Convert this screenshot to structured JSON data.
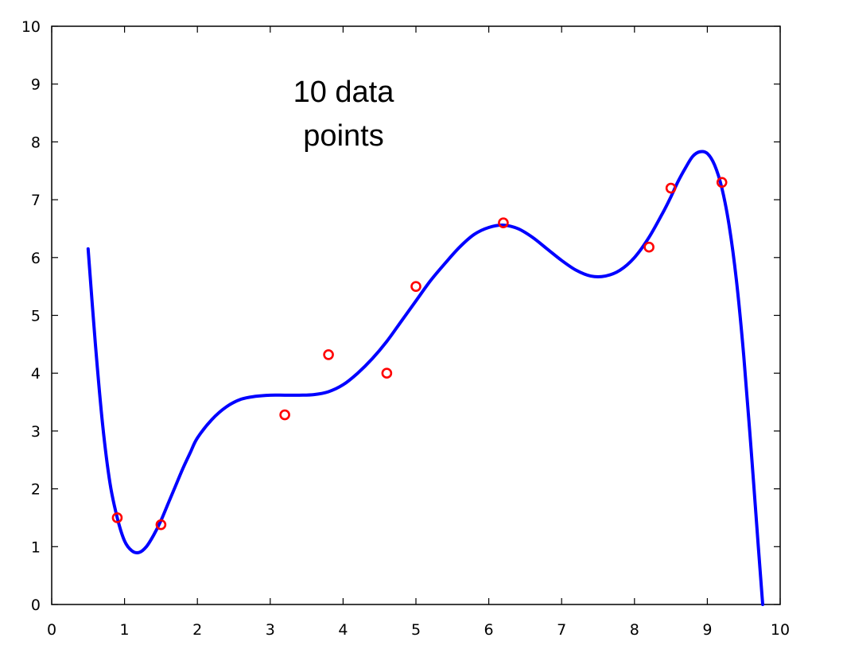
{
  "chart_data": {
    "type": "scatter",
    "title": "",
    "xlabel": "",
    "ylabel": "",
    "xlim": [
      0,
      10
    ],
    "ylim": [
      0,
      10
    ],
    "grid": false,
    "x_ticks": [
      "0",
      "1",
      "2",
      "3",
      "4",
      "5",
      "6",
      "7",
      "8",
      "9",
      "10"
    ],
    "y_ticks": [
      "0",
      "1",
      "2",
      "3",
      "4",
      "5",
      "6",
      "7",
      "8",
      "9",
      "10"
    ],
    "annotation": [
      "10 data",
      "points"
    ],
    "series": [
      {
        "kind": "points",
        "marker": "circle",
        "color": "#ff0000",
        "x": [
          0.9,
          1.5,
          3.2,
          3.8,
          4.6,
          5.0,
          6.2,
          8.2,
          8.5,
          9.2
        ],
        "y": [
          1.5,
          1.38,
          3.28,
          4.32,
          4.0,
          5.5,
          6.6,
          6.18,
          7.2,
          7.3
        ]
      },
      {
        "kind": "fit-curve",
        "color": "#0000ff",
        "x": [
          0.5,
          0.6,
          0.7,
          0.8,
          0.9,
          1.0,
          1.1,
          1.2,
          1.3,
          1.4,
          1.5,
          1.6,
          1.7,
          1.8,
          1.9,
          2.0,
          2.2,
          2.4,
          2.6,
          2.8,
          3.0,
          3.2,
          3.4,
          3.6,
          3.8,
          4.0,
          4.2,
          4.4,
          4.6,
          4.8,
          5.0,
          5.2,
          5.4,
          5.6,
          5.8,
          6.0,
          6.2,
          6.4,
          6.6,
          6.8,
          7.0,
          7.2,
          7.4,
          7.6,
          7.8,
          8.0,
          8.2,
          8.4,
          8.5,
          8.6,
          8.7,
          8.8,
          8.9,
          9.0,
          9.1,
          9.2,
          9.3,
          9.4,
          9.5,
          9.6,
          9.7,
          9.76
        ],
        "y": [
          6.15,
          4.5,
          3.1,
          2.1,
          1.5,
          1.1,
          0.93,
          0.9,
          1.0,
          1.2,
          1.45,
          1.75,
          2.05,
          2.35,
          2.62,
          2.88,
          3.2,
          3.42,
          3.55,
          3.6,
          3.62,
          3.62,
          3.62,
          3.63,
          3.68,
          3.8,
          4.0,
          4.25,
          4.55,
          4.9,
          5.25,
          5.6,
          5.9,
          6.18,
          6.4,
          6.52,
          6.56,
          6.5,
          6.35,
          6.15,
          5.95,
          5.78,
          5.68,
          5.68,
          5.78,
          6.0,
          6.35,
          6.8,
          7.05,
          7.32,
          7.55,
          7.75,
          7.83,
          7.8,
          7.6,
          7.2,
          6.55,
          5.6,
          4.3,
          2.7,
          1.0,
          0.0
        ]
      }
    ]
  }
}
